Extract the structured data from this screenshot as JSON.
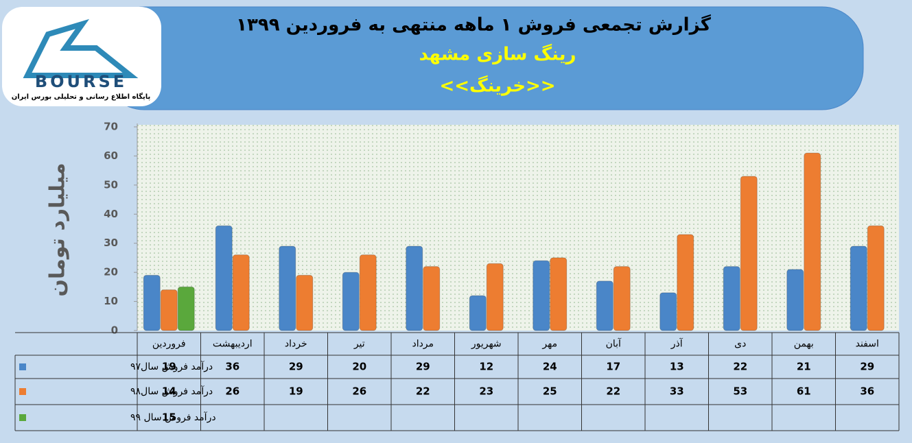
{
  "logo": {
    "text": "BOURSE",
    "tagline": "پایگاه اطلاع رسانی و تحلیلی بورس ایران"
  },
  "chart_data": {
    "type": "bar",
    "title": "گزارش تجمعی فروش ۱ ماهه منتهی به فروردین ۱۳۹۹",
    "subtitle": "رینگ سازی مشهد",
    "symbol": "<<خرینگ>>",
    "y_label": "میلیارد تومان",
    "categories": [
      "فروردین",
      "اردیبهشت",
      "خرداد",
      "تیر",
      "مرداد",
      "شهریور",
      "مهر",
      "آبان",
      "آذر",
      "دی",
      "بهمن",
      "اسفند"
    ],
    "series": [
      {
        "name": "درآمد فروش سال۹۷",
        "color": "#4a86c8",
        "values": [
          19,
          36,
          29,
          20,
          29,
          12,
          24,
          17,
          13,
          22,
          21,
          29
        ]
      },
      {
        "name": "درآمد فروش سال۹۸",
        "color": "#ed7d31",
        "values": [
          14,
          26,
          19,
          26,
          22,
          23,
          25,
          22,
          33,
          53,
          61,
          36
        ]
      },
      {
        "name": "درآمد فروش سال ۹۹",
        "color": "#5aa83c",
        "values": [
          15,
          null,
          null,
          null,
          null,
          null,
          null,
          null,
          null,
          null,
          null,
          null
        ]
      }
    ],
    "ylim": [
      0,
      70
    ],
    "yticks": [
      0,
      10,
      20,
      30,
      40,
      50,
      60,
      70
    ],
    "grid": false
  }
}
